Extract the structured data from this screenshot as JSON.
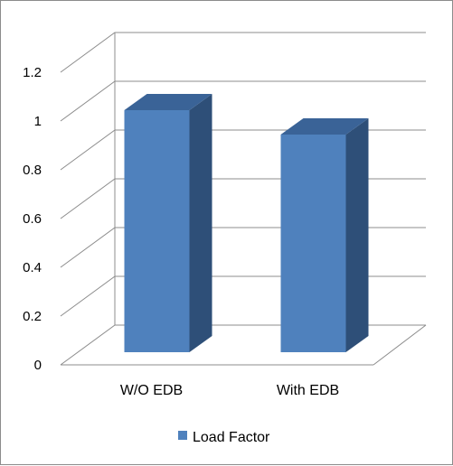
{
  "chart_data": {
    "type": "bar",
    "style": "3d-column",
    "categories": [
      "W/O EDB",
      "With EDB"
    ],
    "series": [
      {
        "name": "Load Factor",
        "values": [
          1.0,
          0.9
        ],
        "color": "#4F81BD"
      }
    ],
    "y_ticks": [
      "0",
      "0.2",
      "0.4",
      "0.6",
      "0.8",
      "1",
      "1.2"
    ],
    "ylim": [
      0,
      1.2
    ],
    "grid": true,
    "legend": "bottom",
    "colors": {
      "front": "#4F81BD",
      "side": "#2E4F78",
      "top": "#3A6397",
      "grid": "#8c8c8c"
    }
  }
}
